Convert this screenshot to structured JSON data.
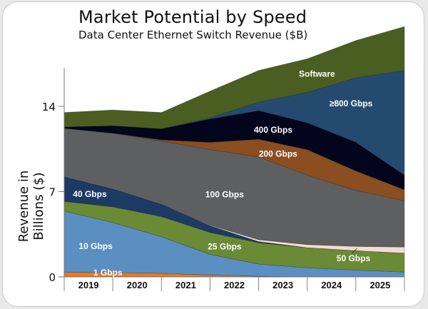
{
  "chart_data": {
    "type": "area",
    "stacked": true,
    "title": "Market Potential by Speed",
    "subtitle": "Data Center Ethernet Switch Revenue ($B)",
    "xlabel": "",
    "ylabel": "Revenue in Billions ($)",
    "categories": [
      "2019",
      "2020",
      "2021",
      "2022",
      "2023",
      "2024",
      "2025"
    ],
    "x_points": [
      0,
      1,
      2,
      3,
      4,
      5,
      6,
      7
    ],
    "yticks": [
      0,
      7,
      14
    ],
    "ylim": [
      0,
      21
    ],
    "grid": false,
    "series": [
      {
        "name": "1 Gbps",
        "label": "1 Gbps",
        "color": "#e07b2a",
        "values": [
          0.4,
          0.35,
          0.3,
          0.15,
          0.05,
          0,
          0,
          0
        ]
      },
      {
        "name": "10 Gbps",
        "label": "10 Gbps",
        "color": "#5b8fc2",
        "values": [
          5.0,
          4.1,
          3.0,
          1.7,
          1.0,
          0.75,
          0.55,
          0.4
        ]
      },
      {
        "name": "25 Gbps",
        "label": "25 Gbps",
        "color": "#6a8a35",
        "values": [
          0.8,
          1.3,
          1.65,
          1.8,
          1.75,
          1.65,
          1.6,
          1.55
        ]
      },
      {
        "name": "40 Gbps",
        "label": "40 Gbps",
        "color": "#1c3a64",
        "values": [
          2.0,
          1.45,
          1.0,
          0.55,
          0.1,
          0,
          0,
          0
        ]
      },
      {
        "name": "50 Gbps",
        "label": "50 Gbps",
        "color": "#f3ddd2",
        "values": [
          0,
          0,
          0,
          0.05,
          0.15,
          0.25,
          0.35,
          0.5
        ]
      },
      {
        "name": "100 Gbps",
        "label": "100 Gbps",
        "color": "#5e5f61",
        "values": [
          4.0,
          4.6,
          5.2,
          6.2,
          6.8,
          5.7,
          4.6,
          3.8
        ]
      },
      {
        "name": "200 Gbps",
        "label": "200 Gbps",
        "color": "#8a4e21",
        "values": [
          0,
          0,
          0.1,
          0.6,
          1.45,
          2.1,
          1.6,
          0.9
        ]
      },
      {
        "name": "400 Gbps",
        "label": "400 Gbps",
        "color": "#03051c",
        "values": [
          0.1,
          0.6,
          0.9,
          1.9,
          2.35,
          2.2,
          2.35,
          1.2
        ]
      },
      {
        "name": ">=800 Gbps",
        "label": "≥800 Gbps",
        "color": "#244b6f",
        "values": [
          0,
          0,
          0,
          0.1,
          0.7,
          2.5,
          5.3,
          8.6
        ]
      },
      {
        "name": "Software",
        "label": "Software",
        "color": "#4a5e22",
        "values": [
          1.2,
          1.3,
          1.35,
          2.2,
          2.6,
          2.75,
          3.05,
          3.6
        ]
      }
    ]
  }
}
